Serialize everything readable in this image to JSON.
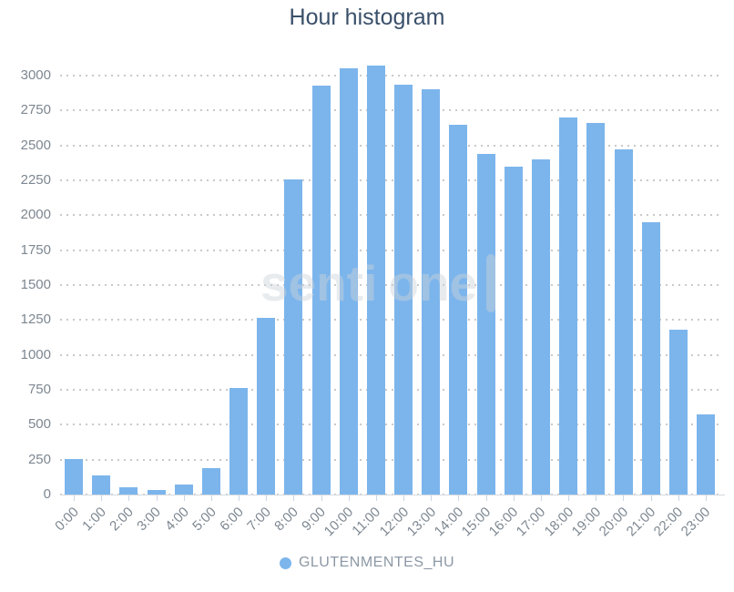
{
  "title": "Hour histogram",
  "watermark": {
    "text_left": "senti",
    "text_right": "one"
  },
  "legend": {
    "label": "GLUTENMENTES_HU"
  },
  "colors": {
    "bar": "#7cb5ec",
    "title": "#3a506a",
    "axis_label": "#7d8791",
    "legend_text": "#8c98a5",
    "gridline": "#c9c9c9",
    "axis_line": "#d5dae0",
    "tick": "#ccd6e6",
    "watermark": "rgba(205,211,218,0.45)"
  },
  "chart_data": {
    "type": "bar",
    "title": "Hour histogram",
    "categories": [
      "0:00",
      "1:00",
      "2:00",
      "3:00",
      "4:00",
      "5:00",
      "6:00",
      "7:00",
      "8:00",
      "9:00",
      "10:00",
      "11:00",
      "12:00",
      "13:00",
      "14:00",
      "15:00",
      "16:00",
      "17:00",
      "18:00",
      "19:00",
      "20:00",
      "21:00",
      "22:00",
      "23:00"
    ],
    "series": [
      {
        "name": "GLUTENMENTES_HU",
        "color": "#7cb5ec",
        "values": [
          255,
          135,
          50,
          30,
          70,
          190,
          765,
          1265,
          2255,
          2930,
          3050,
          3070,
          2935,
          2900,
          2645,
          2440,
          2345,
          2400,
          2700,
          2660,
          2470,
          1950,
          1180,
          575
        ]
      }
    ],
    "xlabel": "",
    "ylabel": "",
    "ylim": [
      0,
      3000
    ],
    "yticks": [
      0,
      250,
      500,
      750,
      1000,
      1250,
      1500,
      1750,
      2000,
      2250,
      2500,
      2750,
      3000
    ],
    "grid": "horizontal-dotted",
    "legend_position": "bottom-center",
    "x_label_rotation": -45
  }
}
